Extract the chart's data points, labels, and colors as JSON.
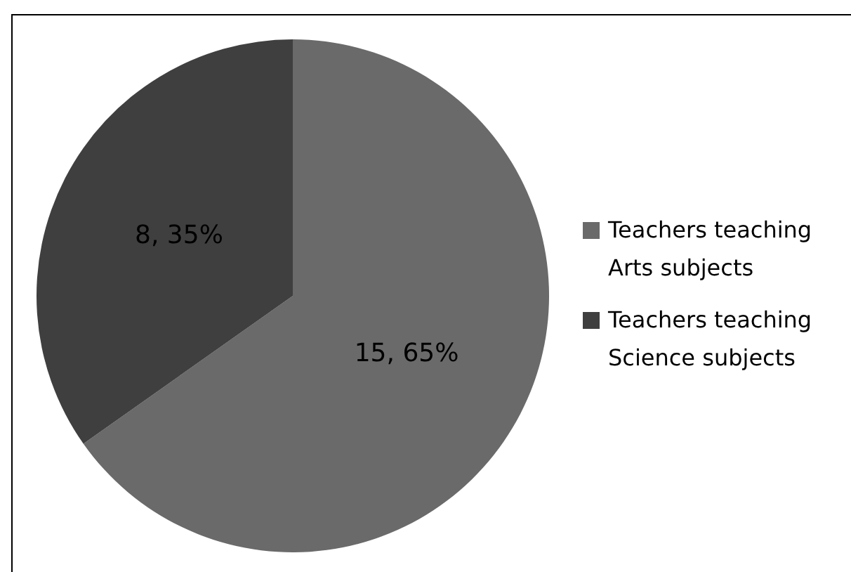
{
  "chart_data": {
    "type": "pie",
    "categories": [
      "Teachers teaching Arts subjects",
      "Teachers teaching Science subjects"
    ],
    "values": [
      15,
      8
    ],
    "colors": [
      "#6a6a6a",
      "#3f3f3f"
    ],
    "value_labels": [
      "15, 65%",
      "8, 35%"
    ],
    "legend": "right"
  }
}
